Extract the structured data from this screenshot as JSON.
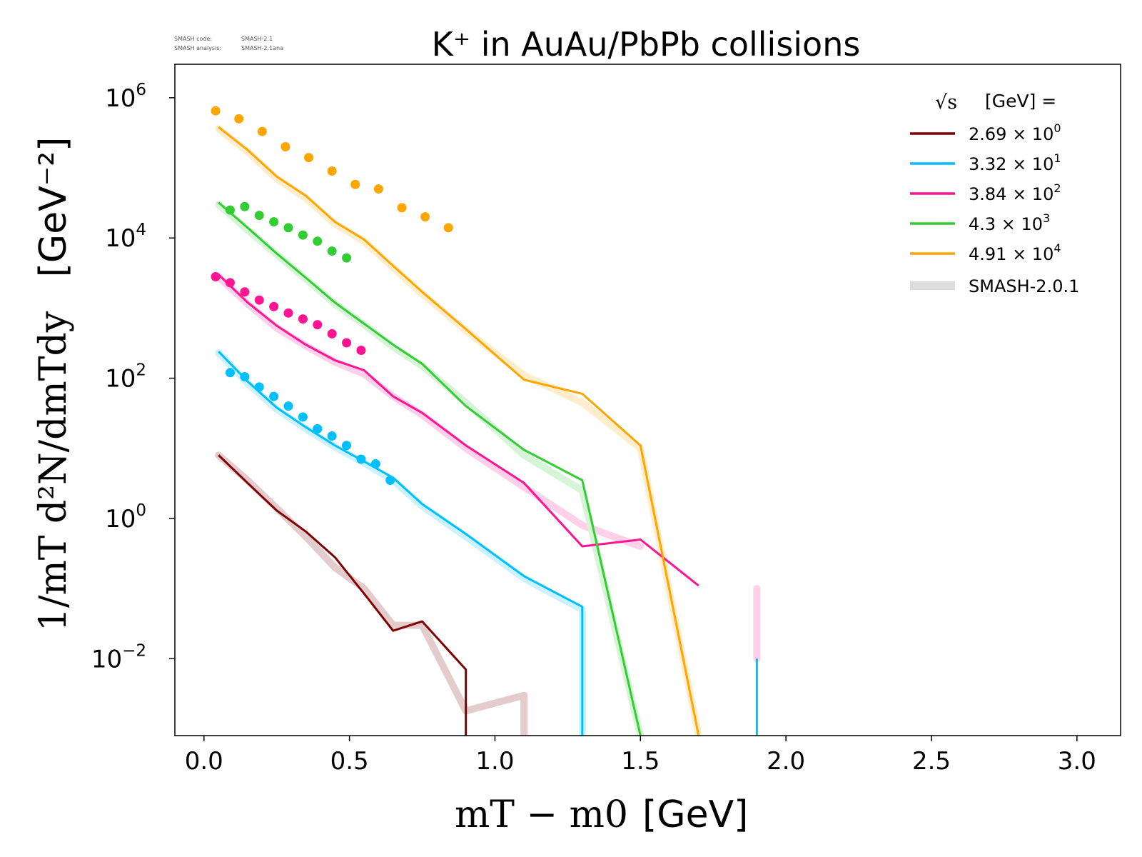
{
  "chart_data": {
    "type": "line",
    "title": "K⁺ in AuAu/PbPb collisions",
    "watermark": {
      "code_label": "SMASH code:",
      "code_value": "SMASH-2.1",
      "analysis_label": "SMASH analysis:",
      "analysis_value": "SMASH-2.1ana"
    },
    "xlabel": {
      "math": "mT − m0",
      "unit": "[GeV]"
    },
    "ylabel": {
      "math": "1/mT d²N/dmTdy",
      "unit": "[GeV⁻²]"
    },
    "xlim": [
      -0.1,
      3.15
    ],
    "ylog": true,
    "ylim": [
      0.0008,
      3000000
    ],
    "x_ticks": [
      "0.0",
      "0.5",
      "1.0",
      "1.5",
      "2.0",
      "2.5",
      "3.0"
    ],
    "x_tick_values": [
      0,
      0.5,
      1.0,
      1.5,
      2.0,
      2.5,
      3.0
    ],
    "y_tick_exponents": [
      -2,
      0,
      2,
      4,
      6
    ],
    "grid": false,
    "legend": {
      "placement": "top-right",
      "title_sym": "√s",
      "title_text": "[GeV] =",
      "entries": [
        {
          "mantissa": "2.69",
          "exponent": "0",
          "color": "#7f0000"
        },
        {
          "mantissa": "3.32",
          "exponent": "1",
          "color": "#00bfff"
        },
        {
          "mantissa": "3.84",
          "exponent": "2",
          "color": "#ff1493"
        },
        {
          "mantissa": "4.3",
          "exponent": "3",
          "color": "#32cd32"
        },
        {
          "mantissa": "4.91",
          "exponent": "4",
          "color": "#ffa500"
        }
      ],
      "reference_label": "SMASH-2.0.1",
      "reference_color": "#dddddd"
    },
    "series": [
      {
        "name": "2.69 × 10⁰",
        "color": "#7f0000",
        "current": {
          "x": [
            0.05,
            0.15,
            0.25,
            0.35,
            0.45,
            0.55,
            0.65,
            0.75,
            0.9,
            0.9
          ],
          "y": [
            8,
            3.2,
            1.3,
            0.65,
            0.28,
            0.085,
            0.025,
            0.034,
            0.007,
            0.0008
          ]
        },
        "reference": {
          "x": [
            0.05,
            0.15,
            0.25,
            0.35,
            0.45,
            0.55,
            0.65,
            0.75,
            0.9,
            1.1,
            1.1
          ],
          "y": [
            8,
            3.5,
            1.4,
            0.55,
            0.2,
            0.1,
            0.03,
            0.03,
            0.0018,
            0.003,
            0.0008
          ]
        },
        "points": {
          "x": [],
          "y": []
        }
      },
      {
        "name": "3.32 × 10¹",
        "color": "#00bfff",
        "current": {
          "x": [
            0.05,
            0.15,
            0.25,
            0.35,
            0.45,
            0.55,
            0.65,
            0.75,
            0.9,
            1.1,
            1.3,
            1.3
          ],
          "y": [
            240,
            90,
            38,
            20,
            11,
            6.5,
            3.8,
            1.6,
            0.6,
            0.15,
            0.055,
            0.0008
          ]
        },
        "reference": {
          "x": [
            0.05,
            0.15,
            0.25,
            0.35,
            0.45,
            0.55,
            0.65,
            0.75,
            0.9,
            1.1,
            1.3,
            1.3
          ],
          "y": [
            230,
            85,
            36,
            19,
            10.5,
            6.2,
            3.5,
            1.5,
            0.55,
            0.14,
            0.05,
            0.0008
          ]
        },
        "extra_spike": {
          "x": 1.9,
          "y": [
            0.01,
            0.0008
          ]
        },
        "points": {
          "x": [
            0.09,
            0.14,
            0.19,
            0.24,
            0.29,
            0.34,
            0.39,
            0.44,
            0.49,
            0.54,
            0.59,
            0.64
          ],
          "y": [
            120,
            105,
            75,
            55,
            40,
            28,
            19,
            15,
            11,
            7,
            6,
            3.5
          ]
        }
      },
      {
        "name": "3.84 × 10²",
        "color": "#ff1493",
        "current": {
          "x": [
            0.05,
            0.15,
            0.25,
            0.35,
            0.45,
            0.55,
            0.65,
            0.75,
            0.9,
            1.1,
            1.3,
            1.5,
            1.7
          ],
          "y": [
            3000,
            1200,
            560,
            300,
            180,
            130,
            55,
            32,
            11,
            3.2,
            0.4,
            0.5,
            0.11
          ]
        },
        "reference": {
          "x": [
            0.05,
            0.15,
            0.25,
            0.35,
            0.45,
            0.55,
            0.65,
            0.75,
            0.9,
            1.1,
            1.3,
            1.5
          ],
          "y": [
            2800,
            1150,
            520,
            290,
            170,
            115,
            55,
            30,
            10,
            2.8,
            0.8,
            0.4
          ]
        },
        "ref_spike": {
          "x": 1.9,
          "y": [
            0.1,
            0.01
          ]
        },
        "points": {
          "x": [
            0.04,
            0.09,
            0.14,
            0.19,
            0.24,
            0.29,
            0.34,
            0.39,
            0.44,
            0.49,
            0.54
          ],
          "y": [
            2800,
            2300,
            1700,
            1300,
            1050,
            850,
            700,
            580,
            430,
            320,
            250
          ]
        }
      },
      {
        "name": "4.3 × 10³",
        "color": "#32cd32",
        "current": {
          "x": [
            0.05,
            0.15,
            0.25,
            0.35,
            0.45,
            0.55,
            0.65,
            0.75,
            0.9,
            1.1,
            1.3,
            1.5,
            1.5
          ],
          "y": [
            32000,
            14000,
            6000,
            2700,
            1200,
            600,
            300,
            160,
            40,
            9.5,
            3.5,
            0.0008,
            0.0008
          ]
        },
        "reference": {
          "x": [
            0.05,
            0.15,
            0.25,
            0.35,
            0.45,
            0.55,
            0.65,
            0.75,
            0.9,
            1.1,
            1.3,
            1.5,
            1.5
          ],
          "y": [
            30000,
            13000,
            5800,
            2600,
            1150,
            580,
            280,
            150,
            45,
            8,
            2.5,
            0.0008,
            0.0008
          ]
        },
        "points": {
          "x": [
            0.09,
            0.14,
            0.19,
            0.24,
            0.29,
            0.34,
            0.39,
            0.44,
            0.49
          ],
          "y": [
            25000,
            28000,
            21000,
            17000,
            14000,
            11000,
            9000,
            6500,
            5200
          ]
        }
      },
      {
        "name": "4.91 × 10⁴",
        "color": "#ffa500",
        "current": {
          "x": [
            0.05,
            0.15,
            0.25,
            0.35,
            0.45,
            0.55,
            0.65,
            0.75,
            0.9,
            1.1,
            1.3,
            1.5,
            1.7,
            1.7
          ],
          "y": [
            380000,
            180000,
            75000,
            40000,
            17000,
            9500,
            4000,
            1700,
            500,
            95,
            60,
            11,
            0.0008,
            0.0008
          ]
        },
        "reference": {
          "x": [
            0.05,
            0.15,
            0.25,
            0.35,
            0.45,
            0.55,
            0.65,
            0.75,
            0.9,
            1.1,
            1.3,
            1.5,
            1.7,
            1.7
          ],
          "y": [
            360000,
            170000,
            70000,
            37000,
            16000,
            9000,
            3800,
            1600,
            480,
            110,
            45,
            10,
            0.0008,
            0.0008
          ]
        },
        "points": {
          "x": [
            0.04,
            0.12,
            0.2,
            0.28,
            0.36,
            0.44,
            0.52,
            0.6,
            0.68,
            0.76,
            0.84
          ],
          "y": [
            650000,
            500000,
            330000,
            200000,
            140000,
            90000,
            58000,
            50000,
            27000,
            20000,
            14000
          ]
        }
      }
    ]
  }
}
